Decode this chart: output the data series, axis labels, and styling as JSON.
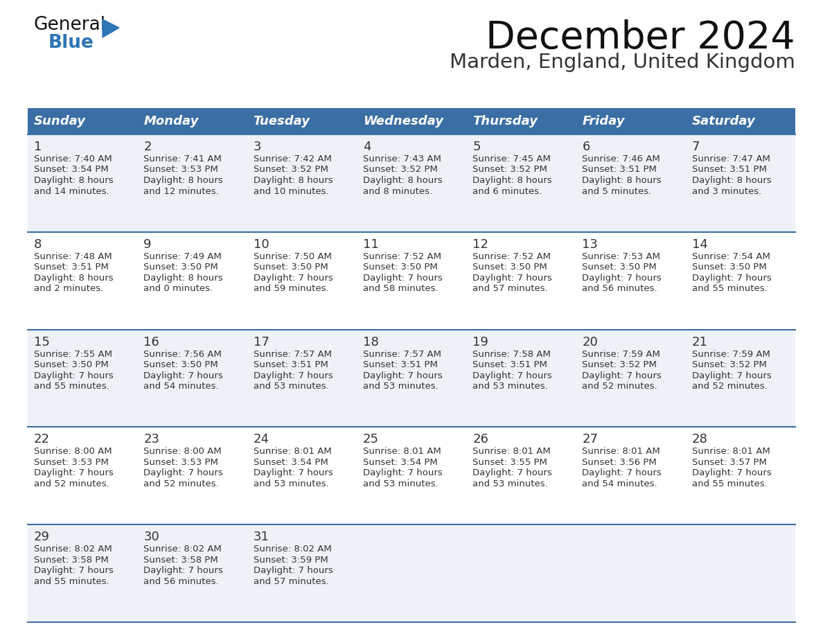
{
  "title": "December 2024",
  "subtitle": "Marden, England, United Kingdom",
  "header_bg_color": "#3a6ea5",
  "header_text_color": "#ffffff",
  "cell_bg_color_light": "#eef2f7",
  "cell_bg_color_white": "#ffffff",
  "row_line_color": "#3a6ea5",
  "text_color": "#333333",
  "days_of_week": [
    "Sunday",
    "Monday",
    "Tuesday",
    "Wednesday",
    "Thursday",
    "Friday",
    "Saturday"
  ],
  "calendar_data": [
    [
      {
        "day": "1",
        "sunrise": "7:40 AM",
        "sunset": "3:54 PM",
        "daylight_h": "8 hours",
        "daylight_m": "and 14 minutes."
      },
      {
        "day": "2",
        "sunrise": "7:41 AM",
        "sunset": "3:53 PM",
        "daylight_h": "8 hours",
        "daylight_m": "and 12 minutes."
      },
      {
        "day": "3",
        "sunrise": "7:42 AM",
        "sunset": "3:52 PM",
        "daylight_h": "8 hours",
        "daylight_m": "and 10 minutes."
      },
      {
        "day": "4",
        "sunrise": "7:43 AM",
        "sunset": "3:52 PM",
        "daylight_h": "8 hours",
        "daylight_m": "and 8 minutes."
      },
      {
        "day": "5",
        "sunrise": "7:45 AM",
        "sunset": "3:52 PM",
        "daylight_h": "8 hours",
        "daylight_m": "and 6 minutes."
      },
      {
        "day": "6",
        "sunrise": "7:46 AM",
        "sunset": "3:51 PM",
        "daylight_h": "8 hours",
        "daylight_m": "and 5 minutes."
      },
      {
        "day": "7",
        "sunrise": "7:47 AM",
        "sunset": "3:51 PM",
        "daylight_h": "8 hours",
        "daylight_m": "and 3 minutes."
      }
    ],
    [
      {
        "day": "8",
        "sunrise": "7:48 AM",
        "sunset": "3:51 PM",
        "daylight_h": "8 hours",
        "daylight_m": "and 2 minutes."
      },
      {
        "day": "9",
        "sunrise": "7:49 AM",
        "sunset": "3:50 PM",
        "daylight_h": "8 hours",
        "daylight_m": "and 0 minutes."
      },
      {
        "day": "10",
        "sunrise": "7:50 AM",
        "sunset": "3:50 PM",
        "daylight_h": "7 hours",
        "daylight_m": "and 59 minutes."
      },
      {
        "day": "11",
        "sunrise": "7:52 AM",
        "sunset": "3:50 PM",
        "daylight_h": "7 hours",
        "daylight_m": "and 58 minutes."
      },
      {
        "day": "12",
        "sunrise": "7:52 AM",
        "sunset": "3:50 PM",
        "daylight_h": "7 hours",
        "daylight_m": "and 57 minutes."
      },
      {
        "day": "13",
        "sunrise": "7:53 AM",
        "sunset": "3:50 PM",
        "daylight_h": "7 hours",
        "daylight_m": "and 56 minutes."
      },
      {
        "day": "14",
        "sunrise": "7:54 AM",
        "sunset": "3:50 PM",
        "daylight_h": "7 hours",
        "daylight_m": "and 55 minutes."
      }
    ],
    [
      {
        "day": "15",
        "sunrise": "7:55 AM",
        "sunset": "3:50 PM",
        "daylight_h": "7 hours",
        "daylight_m": "and 55 minutes."
      },
      {
        "day": "16",
        "sunrise": "7:56 AM",
        "sunset": "3:50 PM",
        "daylight_h": "7 hours",
        "daylight_m": "and 54 minutes."
      },
      {
        "day": "17",
        "sunrise": "7:57 AM",
        "sunset": "3:51 PM",
        "daylight_h": "7 hours",
        "daylight_m": "and 53 minutes."
      },
      {
        "day": "18",
        "sunrise": "7:57 AM",
        "sunset": "3:51 PM",
        "daylight_h": "7 hours",
        "daylight_m": "and 53 minutes."
      },
      {
        "day": "19",
        "sunrise": "7:58 AM",
        "sunset": "3:51 PM",
        "daylight_h": "7 hours",
        "daylight_m": "and 53 minutes."
      },
      {
        "day": "20",
        "sunrise": "7:59 AM",
        "sunset": "3:52 PM",
        "daylight_h": "7 hours",
        "daylight_m": "and 52 minutes."
      },
      {
        "day": "21",
        "sunrise": "7:59 AM",
        "sunset": "3:52 PM",
        "daylight_h": "7 hours",
        "daylight_m": "and 52 minutes."
      }
    ],
    [
      {
        "day": "22",
        "sunrise": "8:00 AM",
        "sunset": "3:53 PM",
        "daylight_h": "7 hours",
        "daylight_m": "and 52 minutes."
      },
      {
        "day": "23",
        "sunrise": "8:00 AM",
        "sunset": "3:53 PM",
        "daylight_h": "7 hours",
        "daylight_m": "and 52 minutes."
      },
      {
        "day": "24",
        "sunrise": "8:01 AM",
        "sunset": "3:54 PM",
        "daylight_h": "7 hours",
        "daylight_m": "and 53 minutes."
      },
      {
        "day": "25",
        "sunrise": "8:01 AM",
        "sunset": "3:54 PM",
        "daylight_h": "7 hours",
        "daylight_m": "and 53 minutes."
      },
      {
        "day": "26",
        "sunrise": "8:01 AM",
        "sunset": "3:55 PM",
        "daylight_h": "7 hours",
        "daylight_m": "and 53 minutes."
      },
      {
        "day": "27",
        "sunrise": "8:01 AM",
        "sunset": "3:56 PM",
        "daylight_h": "7 hours",
        "daylight_m": "and 54 minutes."
      },
      {
        "day": "28",
        "sunrise": "8:01 AM",
        "sunset": "3:57 PM",
        "daylight_h": "7 hours",
        "daylight_m": "and 55 minutes."
      }
    ],
    [
      {
        "day": "29",
        "sunrise": "8:02 AM",
        "sunset": "3:58 PM",
        "daylight_h": "7 hours",
        "daylight_m": "and 55 minutes."
      },
      {
        "day": "30",
        "sunrise": "8:02 AM",
        "sunset": "3:58 PM",
        "daylight_h": "7 hours",
        "daylight_m": "and 56 minutes."
      },
      {
        "day": "31",
        "sunrise": "8:02 AM",
        "sunset": "3:59 PM",
        "daylight_h": "7 hours",
        "daylight_m": "and 57 minutes."
      },
      null,
      null,
      null,
      null
    ]
  ]
}
